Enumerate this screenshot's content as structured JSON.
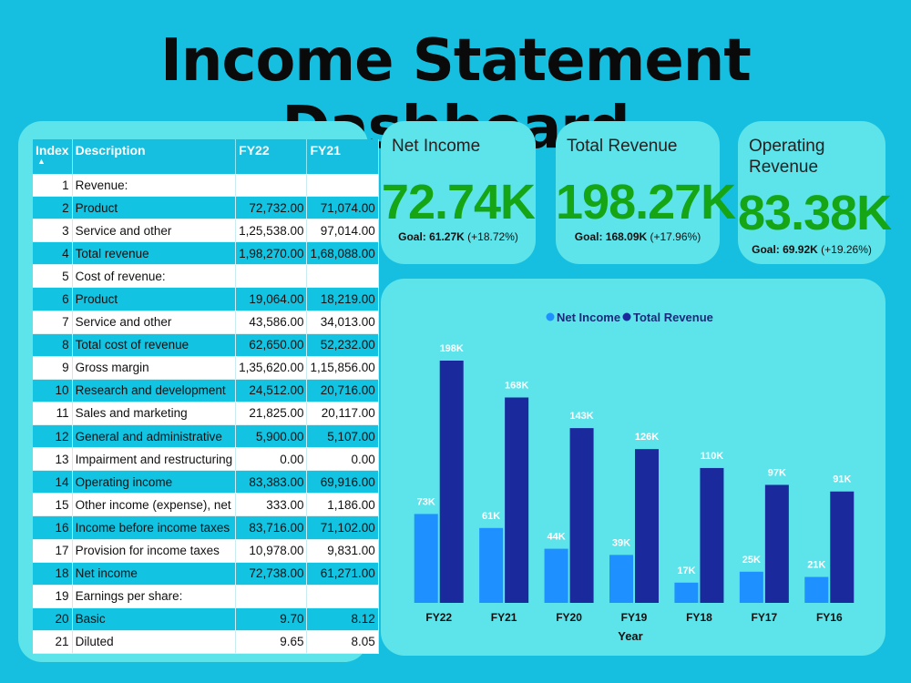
{
  "title": "Income Statement Dashboard",
  "table": {
    "headers": [
      "Index",
      "Description",
      "FY22",
      "FY21"
    ],
    "rows": [
      [
        "1",
        "Revenue:",
        "",
        ""
      ],
      [
        "2",
        "Product",
        "72,732.00",
        "71,074.00"
      ],
      [
        "3",
        "Service and other",
        "1,25,538.00",
        "97,014.00"
      ],
      [
        "4",
        "Total revenue",
        "1,98,270.00",
        "1,68,088.00"
      ],
      [
        "5",
        "Cost of revenue:",
        "",
        ""
      ],
      [
        "6",
        "Product",
        "19,064.00",
        "18,219.00"
      ],
      [
        "7",
        "Service and other",
        "43,586.00",
        "34,013.00"
      ],
      [
        "8",
        "Total cost of revenue",
        "62,650.00",
        "52,232.00"
      ],
      [
        "9",
        "Gross margin",
        "1,35,620.00",
        "1,15,856.00"
      ],
      [
        "10",
        "Research and development",
        "24,512.00",
        "20,716.00"
      ],
      [
        "11",
        "Sales and marketing",
        "21,825.00",
        "20,117.00"
      ],
      [
        "12",
        "General and administrative",
        "5,900.00",
        "5,107.00"
      ],
      [
        "13",
        "Impairment and restructuring",
        "0.00",
        "0.00"
      ],
      [
        "14",
        "Operating income",
        "83,383.00",
        "69,916.00"
      ],
      [
        "15",
        "Other income (expense), net",
        "333.00",
        "1,186.00"
      ],
      [
        "16",
        "Income before income taxes",
        "83,716.00",
        "71,102.00"
      ],
      [
        "17",
        "Provision for income taxes",
        "10,978.00",
        "9,831.00"
      ],
      [
        "18",
        "Net income",
        "72,738.00",
        "61,271.00"
      ],
      [
        "19",
        "Earnings per share:",
        "",
        ""
      ],
      [
        "20",
        "Basic",
        "9.70",
        "8.12"
      ],
      [
        "21",
        "Diluted",
        "9.65",
        "8.05"
      ]
    ]
  },
  "kpis": {
    "net_income": {
      "label": "Net Income",
      "value": "72.74K",
      "goal_label": "Goal: 61.27K",
      "goal_delta": "(+18.72%)"
    },
    "total_revenue": {
      "label": "Total Revenue",
      "value": "198.27K",
      "goal_label": "Goal: 168.09K",
      "goal_delta": "(+17.96%)"
    },
    "operating_revenue": {
      "label": "Operating Revenue",
      "value": "83.38K",
      "goal_label": "Goal: 69.92K",
      "goal_delta": "(+19.26%)"
    }
  },
  "colors": {
    "net_income": "#1e90ff",
    "total_revenue": "#1a2a9c",
    "kpi_value": "#15a515"
  },
  "chart_data": {
    "type": "bar",
    "categories": [
      "FY22",
      "FY21",
      "FY20",
      "FY19",
      "FY18",
      "FY17",
      "FY16"
    ],
    "series": [
      {
        "name": "Net Income",
        "values": [
          72.74,
          61.27,
          44.28,
          39.24,
          16.57,
          25.49,
          21.2
        ],
        "labels": [
          "73K",
          "61K",
          "44K",
          "39K",
          "17K",
          "25K",
          "21K"
        ]
      },
      {
        "name": "Total Revenue",
        "values": [
          198.27,
          168.09,
          143.02,
          125.84,
          110.36,
          96.57,
          91.15
        ],
        "labels": [
          "198K",
          "168K",
          "143K",
          "126K",
          "110K",
          "97K",
          "91K"
        ]
      }
    ],
    "xlabel": "Year",
    "ylabel": "",
    "ylim": [
      0,
      198.27
    ],
    "legend": "top-center",
    "grid": false
  }
}
